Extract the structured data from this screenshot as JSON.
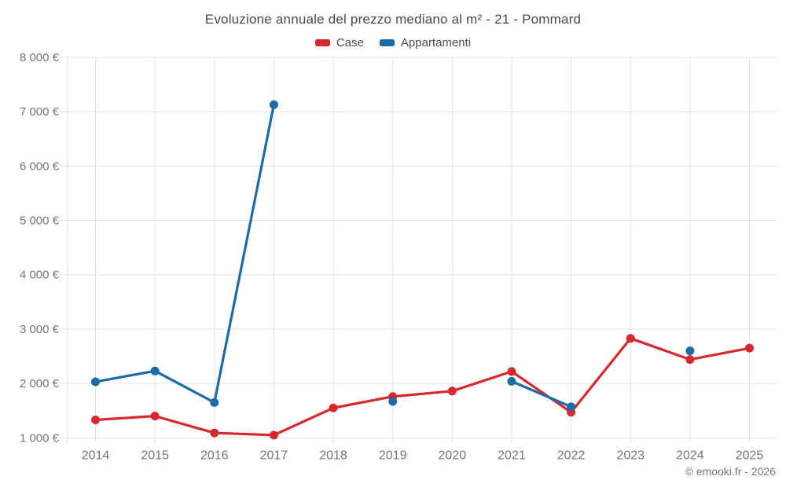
{
  "title": "Evoluzione annuale del prezzo mediano al m² - 21 - Pommard",
  "attribution": "© emooki.fr - 2026",
  "colors": {
    "case": "#d7282e",
    "appartamenti": "#1b6ba5",
    "grid": "#e3e3e3",
    "axis": "#dcdcdc",
    "tick_label": "#757575",
    "heading": "#4a4a4a",
    "background": "#ffffff"
  },
  "legend": {
    "items": [
      {
        "id": "case",
        "label": "Case",
        "color": "#d7282e"
      },
      {
        "id": "appartamenti",
        "label": "Appartamenti",
        "color": "#1b6ba5"
      }
    ]
  },
  "chart_data": {
    "type": "line",
    "title": "Evoluzione annuale del prezzo mediano al m² - 21 - Pommard",
    "xlabel": "",
    "ylabel": "",
    "x_labels": [
      "2014",
      "2015",
      "2016",
      "2017",
      "2018",
      "2019",
      "2020",
      "2021",
      "2022",
      "2023",
      "2024",
      "2025"
    ],
    "ylim": [
      1000,
      8000
    ],
    "yticks": {
      "values": [
        1000,
        2000,
        3000,
        4000,
        5000,
        6000,
        7000,
        8000
      ],
      "labels": [
        "1 000 €",
        "2 000 €",
        "3 000 €",
        "4 000 €",
        "5 000 €",
        "6 000 €",
        "7 000 €",
        "8 000 €"
      ]
    },
    "grid": true,
    "legend_position": "top",
    "currency": "EUR",
    "units": "€/m²",
    "series": [
      {
        "id": "case",
        "name": "Case",
        "color": "#d7282e",
        "values": [
          1330,
          1400,
          1090,
          1050,
          1550,
          1760,
          1860,
          2220,
          1470,
          2830,
          2440,
          2650
        ]
      },
      {
        "id": "appartamenti",
        "name": "Appartamenti",
        "color": "#1b6ba5",
        "values": [
          2030,
          2230,
          1650,
          7130,
          null,
          1670,
          null,
          2040,
          1570,
          null,
          2600,
          null
        ]
      }
    ]
  }
}
